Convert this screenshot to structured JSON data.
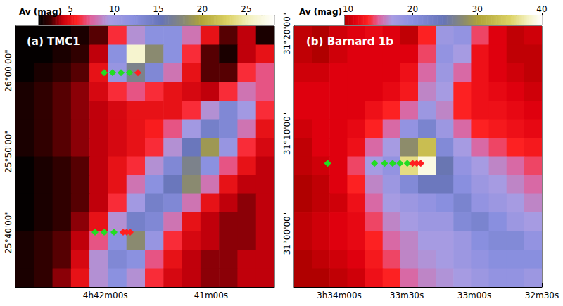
{
  "chart_data": [
    {
      "type": "heatmap",
      "title": "(a) TMC1",
      "x": [
        70.6906,
        70.6469,
        70.6031,
        70.5594,
        70.5156,
        70.4719,
        70.4281,
        70.3844,
        70.3406,
        70.2969,
        70.2531,
        70.2094,
        70.1656,
        70.1219
      ],
      "y": [
        26.0728,
        26.0344,
        25.9959,
        25.9575,
        25.9191,
        25.8806,
        25.8422,
        25.8038,
        25.7653,
        25.7269,
        25.6885,
        25.65,
        25.6116,
        25.5732
      ],
      "values": [
        [
          1.5,
          1.5,
          1.5,
          2,
          3,
          6,
          9,
          12,
          12,
          8,
          5,
          3,
          4,
          2
        ],
        [
          1.5,
          1.5,
          2,
          2.5,
          4,
          12,
          26,
          18,
          12,
          6,
          3,
          2,
          4,
          5
        ],
        [
          1.5,
          2,
          2.5,
          3,
          5,
          11,
          17,
          13,
          8,
          5,
          3,
          3,
          6,
          7
        ],
        [
          2,
          2.5,
          3,
          3.5,
          4.5,
          6,
          7,
          6,
          5,
          4.5,
          4,
          6,
          8,
          7
        ],
        [
          2,
          2.5,
          3,
          3.5,
          4,
          4.5,
          5,
          5,
          5,
          6,
          9,
          13,
          10,
          6
        ],
        [
          2,
          2.5,
          3,
          3.5,
          4,
          4.5,
          5,
          5.5,
          7,
          10,
          14,
          13,
          8,
          5
        ],
        [
          2,
          2.5,
          3,
          3.5,
          4,
          4.5,
          5,
          6,
          9,
          15,
          19,
          11,
          6,
          4.5
        ],
        [
          1.5,
          2,
          2.5,
          3,
          4,
          5,
          6,
          9,
          13,
          17,
          12,
          7,
          5,
          4
        ],
        [
          1.5,
          2,
          2.5,
          3,
          4,
          5,
          8,
          12,
          15,
          18,
          8,
          5,
          4,
          4
        ],
        [
          1.5,
          2,
          2.5,
          3,
          4,
          6,
          10,
          14,
          13,
          8,
          5,
          4,
          3.5,
          4
        ],
        [
          1.5,
          2,
          2.5,
          3.5,
          5,
          9,
          14,
          13,
          8,
          5,
          4,
          3.5,
          3.5,
          4
        ],
        [
          2,
          2.5,
          3,
          4,
          7,
          12,
          18,
          11,
          6,
          4.5,
          4,
          3.5,
          3.5,
          4
        ],
        [
          2,
          2.5,
          3,
          4.5,
          9,
          13,
          12,
          7,
          5,
          4,
          3.5,
          3.5,
          4,
          4
        ],
        [
          2,
          2.5,
          3.5,
          5,
          9,
          12,
          9,
          6,
          4.5,
          4,
          3.5,
          3.5,
          4,
          4
        ]
      ],
      "xlim": [
        70.7125,
        70.1
      ],
      "ylim": [
        25.554,
        26.092
      ],
      "xticks": [
        {
          "value": 70.5,
          "label": "4h42m00s"
        },
        {
          "value": 70.25,
          "label": "41m00s"
        }
      ],
      "yticks": [
        {
          "value": 25.666667,
          "label": "25°40'00\""
        },
        {
          "value": 25.833333,
          "label": "25°50'00\""
        },
        {
          "value": 26.0,
          "label": "26°00'00\""
        }
      ],
      "colorbar": {
        "label": "Av (mag)",
        "range": [
          1.4,
          28.2
        ],
        "ticks": [
          5,
          10,
          15,
          20,
          25
        ]
      },
      "markers": [
        {
          "color": "#22dd22",
          "marker": "diamond",
          "x": [
            70.5028,
            70.4828,
            70.4628,
            70.4429,
            70.5244,
            70.5028,
            70.4795
          ],
          "y": [
            25.996,
            25.996,
            25.996,
            25.996,
            25.667,
            25.667,
            25.667
          ]
        },
        {
          "color": "#ff2020",
          "marker": "diamond",
          "x": [
            70.4229,
            70.4578,
            70.4495,
            70.4412
          ],
          "y": [
            25.996,
            25.667,
            25.667,
            25.667
          ]
        }
      ]
    },
    {
      "type": "heatmap",
      "title": "(b) Barnard 1b",
      "x": [
        53.5669,
        53.5342,
        53.5015,
        53.4687,
        53.436,
        53.4033,
        53.3705,
        53.3378,
        53.305,
        53.2723,
        53.2396,
        53.2068,
        53.1741,
        53.1414
      ],
      "y": [
        31.3305,
        31.2994,
        31.2683,
        31.2373,
        31.2062,
        31.1751,
        31.144,
        31.113,
        31.0819,
        31.0508,
        31.0197,
        30.9887,
        30.9576,
        30.9265
      ],
      "values": [
        [
          10,
          9,
          10.5,
          11,
          11.5,
          11,
          10,
          13,
          18,
          19,
          14,
          11,
          10,
          10.5
        ],
        [
          10,
          9,
          10.5,
          11,
          11,
          11,
          11,
          14,
          19,
          17,
          12,
          11,
          10,
          10
        ],
        [
          10.5,
          10.5,
          11,
          11,
          11,
          11,
          12,
          15,
          18,
          15,
          12,
          11,
          10.5,
          10
        ],
        [
          11,
          11,
          11,
          11,
          11,
          11.5,
          12.5,
          16,
          17,
          13,
          12,
          11.5,
          11,
          10.5
        ],
        [
          11,
          11,
          11,
          11,
          12,
          13,
          15,
          18,
          16,
          13,
          12,
          12,
          11.5,
          11
        ],
        [
          10.5,
          11,
          11,
          11.5,
          13,
          15,
          19,
          22,
          18,
          15,
          13,
          12.5,
          12,
          11.5
        ],
        [
          10,
          11,
          11,
          12,
          15,
          17,
          28,
          33,
          21,
          17,
          15,
          14,
          13,
          12.5
        ],
        [
          10,
          10.5,
          11,
          14,
          17,
          19,
          36,
          39,
          25,
          19,
          17,
          16,
          15,
          14
        ],
        [
          9.5,
          10,
          11,
          13,
          16,
          18,
          21,
          24,
          24,
          20,
          18,
          17,
          16,
          15
        ],
        [
          9.5,
          10,
          10.5,
          12,
          15,
          17,
          18,
          19,
          20,
          22,
          19,
          18,
          17,
          16
        ],
        [
          10,
          10.5,
          11,
          11.5,
          14,
          16,
          17,
          18,
          18,
          21,
          22,
          20,
          18,
          17
        ],
        [
          10,
          10.5,
          11,
          11.5,
          13,
          15,
          16,
          17,
          17,
          18,
          20,
          21,
          21,
          19
        ],
        [
          9.5,
          10,
          10.5,
          11,
          12.5,
          14,
          16,
          16.5,
          17,
          18,
          19,
          20,
          20,
          20
        ],
        [
          9.5,
          9.5,
          10,
          10.5,
          12,
          13,
          15,
          16,
          16.5,
          17,
          18,
          19,
          19,
          18
        ]
      ],
      "xlim": [
        53.5833,
        53.125
      ],
      "ylim": [
        30.911,
        31.346
      ],
      "xticks": [
        {
          "value": 53.5,
          "label": "3h34m00s"
        },
        {
          "value": 53.375,
          "label": "33m30s"
        },
        {
          "value": 53.25,
          "label": "33m00s"
        },
        {
          "value": 53.125,
          "label": "32m30s"
        }
      ],
      "yticks": [
        {
          "value": 31.0,
          "label": "31°00'00\""
        },
        {
          "value": 31.166667,
          "label": "31°10'00\""
        },
        {
          "value": 31.333333,
          "label": "31°20'00\""
        }
      ],
      "colorbar": {
        "label": "Av (mag)",
        "range": [
          9.5,
          40
        ],
        "ticks": [
          10,
          20,
          30,
          40
        ]
      },
      "markers": [
        {
          "color": "#22dd22",
          "marker": "diamond",
          "x": [
            53.5214,
            53.4347,
            53.4161,
            53.4012,
            53.3876,
            53.374
          ],
          "y": [
            31.117,
            31.117,
            31.117,
            31.117,
            31.117,
            31.117
          ]
        },
        {
          "color": "#ff2020",
          "marker": "diamond",
          "x": [
            53.3641,
            53.3566,
            53.3492
          ],
          "y": [
            31.117,
            31.117,
            31.117
          ]
        }
      ]
    }
  ]
}
